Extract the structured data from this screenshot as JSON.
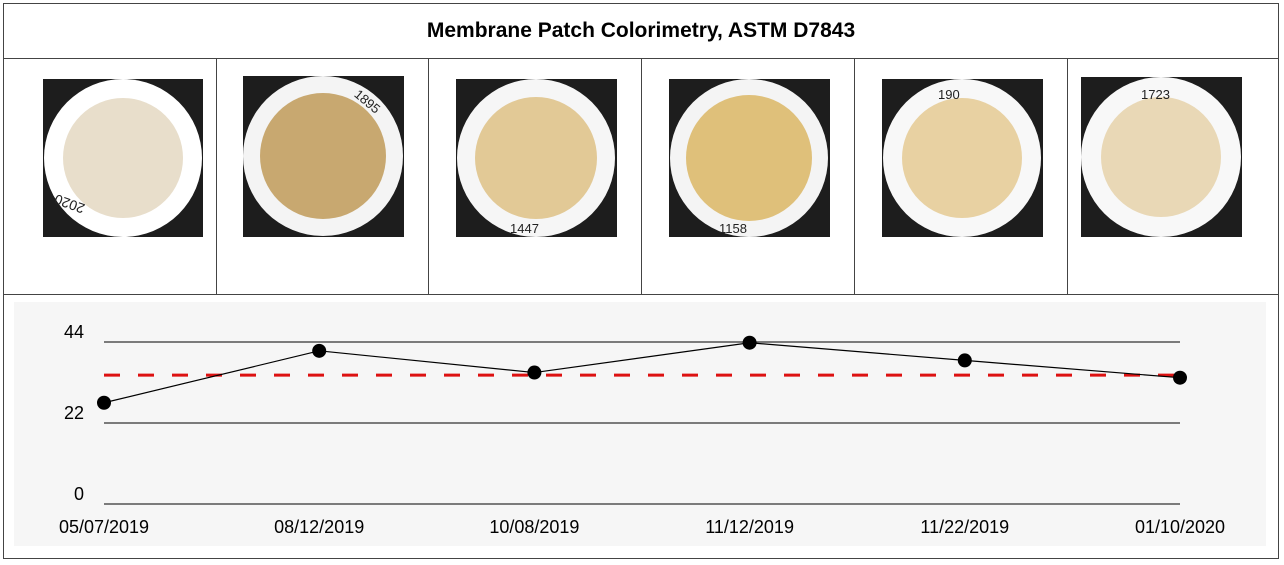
{
  "title": "Membrane Patch Colorimetry, ASTM D7843",
  "patches": [
    {
      "label": "2020",
      "color": "#e8decb",
      "rim": "#ffffff"
    },
    {
      "label": "1895",
      "color": "#c8a870",
      "rim": "#f4f4f4"
    },
    {
      "label": "1447",
      "color": "#e2c996",
      "rim": "#f6f6f6"
    },
    {
      "label": "1158",
      "color": "#dfc07a",
      "rim": "#f4f4f4"
    },
    {
      "label": "190",
      "color": "#e8d1a2",
      "rim": "#f8f8f8"
    },
    {
      "label": "1723",
      "color": "#e9d8b6",
      "rim": "#f8f8f8"
    }
  ],
  "chart_data": {
    "type": "line",
    "title": "",
    "xlabel": "",
    "ylabel": "",
    "categories": [
      "05/07/2019",
      "08/12/2019",
      "10/08/2019",
      "11/12/2019",
      "11/22/2019",
      "01/10/2020"
    ],
    "series": [
      {
        "values": [
          27.5,
          41.6,
          35.7,
          43.8,
          39.0,
          34.3
        ],
        "color": "#000000"
      }
    ],
    "threshold": {
      "value": 35,
      "color": "#dd1111",
      "style": "dashed"
    },
    "yticks": [
      0,
      22,
      44
    ],
    "ylim": [
      0,
      44
    ],
    "grid": true,
    "legend": "none"
  }
}
